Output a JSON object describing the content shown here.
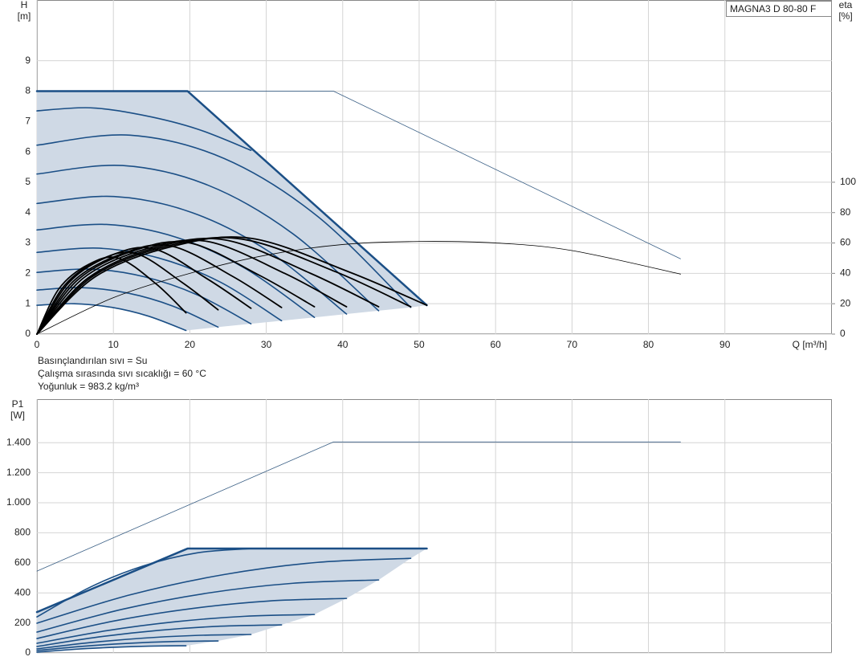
{
  "chart_data": [
    {
      "type": "line",
      "annotation": "MAGNA3 D 80-80 F",
      "ylabel": "H",
      "yunit": "[m]",
      "y2label": "eta",
      "y2unit": "[%]",
      "xlabel": "Q [m³/h]",
      "notes": [
        "Basınçlandırılan sıvı = Su",
        "Çalışma sırasında sıvı sıcaklığı = 60 °C",
        "Yoğunluk = 983.2 kg/m³"
      ],
      "xlim": [
        0,
        104
      ],
      "ylim": [
        0,
        11
      ],
      "y2lim": [
        0,
        220
      ],
      "xticks": [
        0,
        10,
        20,
        30,
        40,
        50,
        60,
        70,
        80,
        90
      ],
      "yticks": [
        0,
        1,
        2,
        3,
        4,
        5,
        6,
        7,
        8,
        9
      ],
      "y2ticks": [
        0,
        20,
        40,
        60,
        80,
        100
      ],
      "grid": true,
      "series": [
        {
          "type": "area",
          "color": "#cfd9e5",
          "x": [
            0,
            19.7,
            51,
            48.9,
            44.7,
            40.5,
            36.3,
            32,
            28,
            23.7,
            19.5,
            14.6,
            9.8,
            4.9,
            0
          ],
          "values": [
            8,
            8,
            0.95,
            0.88,
            0.77,
            0.66,
            0.55,
            0.44,
            0.34,
            0.23,
            0.12,
            0.59,
            0.88,
            1,
            0.95
          ]
        },
        {
          "type": "line",
          "color": "#3a5f85",
          "width": 0.8,
          "smooth": false,
          "x": [
            0,
            38.8,
            84.2
          ],
          "values": [
            8,
            8,
            2.48
          ]
        },
        {
          "type": "line",
          "color": "#1b4f86",
          "width": 2.5,
          "smooth": false,
          "x": [
            0,
            19.7,
            51
          ],
          "values": [
            8,
            8,
            0.95
          ]
        },
        {
          "type": "line",
          "color": "#1b4f86",
          "width": 1.6,
          "smooth": true,
          "x": [
            0,
            7,
            14,
            21,
            28
          ],
          "values": [
            7.35,
            7.45,
            7.2,
            6.75,
            6.05
          ]
        },
        {
          "type": "line",
          "color": "#1b4f86",
          "width": 1.6,
          "smooth": true,
          "x": [
            0,
            12.2,
            24.5,
            36.7,
            48.9
          ],
          "values": [
            6.22,
            6.55,
            5.78,
            3.88,
            0.88
          ]
        },
        {
          "type": "line",
          "color": "#1b4f86",
          "width": 1.6,
          "smooth": true,
          "x": [
            0,
            11.2,
            22.4,
            33.5,
            44.7
          ],
          "values": [
            5.27,
            5.55,
            4.9,
            3.3,
            0.77
          ]
        },
        {
          "type": "line",
          "color": "#1b4f86",
          "width": 1.6,
          "smooth": true,
          "x": [
            0,
            10.1,
            20.3,
            30.4,
            40.5
          ],
          "values": [
            4.3,
            4.53,
            4,
            2.71,
            0.66
          ]
        },
        {
          "type": "line",
          "color": "#1b4f86",
          "width": 1.6,
          "smooth": true,
          "x": [
            0,
            9.1,
            18.2,
            27.2,
            36.3
          ],
          "values": [
            3.43,
            3.61,
            3.19,
            2.17,
            0.55
          ]
        },
        {
          "type": "line",
          "color": "#1b4f86",
          "width": 1.6,
          "smooth": true,
          "x": [
            0,
            8,
            16,
            24,
            32
          ],
          "values": [
            2.69,
            2.83,
            2.5,
            1.71,
            0.44
          ]
        },
        {
          "type": "line",
          "color": "#1b4f86",
          "width": 1.6,
          "smooth": true,
          "x": [
            0,
            7,
            14,
            21,
            28
          ],
          "values": [
            2.03,
            2.14,
            1.89,
            1.29,
            0.34
          ]
        },
        {
          "type": "line",
          "color": "#1b4f86",
          "width": 1.6,
          "smooth": true,
          "x": [
            0,
            5.9,
            11.9,
            17.8,
            23.7
          ],
          "values": [
            1.45,
            1.53,
            1.35,
            0.92,
            0.23
          ]
        },
        {
          "type": "line",
          "color": "#1b4f86",
          "width": 1.6,
          "smooth": true,
          "x": [
            0,
            4.9,
            9.8,
            14.6,
            19.5
          ],
          "values": [
            0.95,
            1,
            0.88,
            0.59,
            0.12
          ]
        },
        {
          "type": "line",
          "axis": "y2",
          "color": "#000000",
          "width": 0.8,
          "smooth": true,
          "x": [
            0,
            10,
            20,
            30,
            40,
            50,
            60,
            70,
            84.2
          ],
          "values": [
            0,
            24,
            40,
            52,
            59,
            61,
            60,
            55,
            39.5
          ]
        },
        {
          "type": "line",
          "axis": "y2",
          "color": "#000000",
          "width": 1.8,
          "smooth": true,
          "x": [
            0,
            2.9,
            6.8,
            10.7,
            15.6,
            19.5
          ],
          "values": [
            0,
            30,
            46,
            50,
            33,
            14
          ]
        },
        {
          "type": "line",
          "axis": "y2",
          "color": "#000000",
          "width": 1.8,
          "smooth": true,
          "x": [
            0,
            3.6,
            8.3,
            13,
            19,
            23.7
          ],
          "values": [
            0,
            32,
            49,
            53,
            34,
            16
          ]
        },
        {
          "type": "line",
          "axis": "y2",
          "color": "#000000",
          "width": 1.8,
          "smooth": true,
          "x": [
            0,
            4.2,
            9.8,
            15.4,
            22.4,
            28
          ],
          "values": [
            0,
            34,
            52,
            56,
            36,
            17
          ]
        },
        {
          "type": "line",
          "axis": "y2",
          "color": "#000000",
          "width": 1.8,
          "smooth": true,
          "x": [
            0,
            4.8,
            11.2,
            17.6,
            25.6,
            32
          ],
          "values": [
            0,
            35,
            53,
            58,
            38,
            17.5
          ]
        },
        {
          "type": "line",
          "axis": "y2",
          "color": "#000000",
          "width": 1.8,
          "smooth": true,
          "x": [
            0,
            5.4,
            12.7,
            20,
            29,
            36.3
          ],
          "values": [
            0,
            36,
            55,
            60,
            39,
            18
          ]
        },
        {
          "type": "line",
          "axis": "y2",
          "color": "#000000",
          "width": 1.8,
          "smooth": true,
          "x": [
            0,
            6.1,
            14.2,
            22.3,
            32.4,
            40.5
          ],
          "values": [
            0,
            37,
            56,
            61,
            40,
            18
          ]
        },
        {
          "type": "line",
          "axis": "y2",
          "color": "#000000",
          "width": 1.8,
          "smooth": true,
          "x": [
            0,
            6.7,
            15.6,
            24.6,
            35.8,
            44.7
          ],
          "values": [
            0,
            37,
            57,
            62,
            40,
            18
          ]
        },
        {
          "type": "line",
          "axis": "y2",
          "color": "#000000",
          "width": 1.8,
          "smooth": true,
          "x": [
            0,
            7.3,
            17.1,
            26.9,
            39.1,
            48.9
          ],
          "values": [
            0,
            38,
            58,
            62.5,
            41,
            18
          ]
        },
        {
          "type": "line",
          "axis": "y2",
          "color": "#000000",
          "width": 1.8,
          "smooth": true,
          "x": [
            0,
            7.7,
            17.9,
            28.1,
            40.8,
            51
          ],
          "values": [
            0,
            38,
            58,
            63,
            41,
            19
          ]
        }
      ]
    },
    {
      "type": "line",
      "ylabel": "P1",
      "yunit": "[W]",
      "xlim": [
        0,
        104
      ],
      "ylim": [
        0,
        1690
      ],
      "xticks": [
        0,
        10,
        20,
        30,
        40,
        50,
        60,
        70,
        80,
        90
      ],
      "xtick_labels": false,
      "yticks": [
        0,
        200,
        400,
        600,
        800,
        {
          "value": 1000,
          "label": "1.000"
        },
        {
          "value": 1200,
          "label": "1.200"
        },
        {
          "value": 1400,
          "label": "1.400"
        }
      ],
      "grid": true,
      "series": [
        {
          "type": "area",
          "color": "#cfd9e5",
          "x": [
            0,
            19.7,
            51,
            48.9,
            44.7,
            40.5,
            36.3,
            32,
            28,
            23.7,
            19.5,
            14.6,
            9.8,
            4.9,
            0
          ],
          "values": [
            272,
            695,
            695,
            630,
            486,
            363,
            256,
            187,
            123,
            80,
            48,
            45,
            37,
            24,
            5
          ]
        },
        {
          "type": "line",
          "color": "#3a5f85",
          "width": 0.8,
          "smooth": false,
          "x": [
            0,
            38.8,
            84.2
          ],
          "values": [
            545,
            1405,
            1405
          ]
        },
        {
          "type": "line",
          "color": "#1b4f86",
          "width": 2.5,
          "smooth": false,
          "x": [
            0,
            19.7,
            51
          ],
          "values": [
            272,
            695,
            695
          ]
        },
        {
          "type": "line",
          "color": "#1b4f86",
          "width": 1.6,
          "smooth": true,
          "x": [
            0,
            7,
            14,
            21,
            28
          ],
          "values": [
            240,
            439,
            581,
            667,
            695
          ]
        },
        {
          "type": "line",
          "color": "#1b4f86",
          "width": 1.6,
          "smooth": true,
          "x": [
            0,
            12.2,
            24.5,
            36.7,
            48.9
          ],
          "values": [
            198,
            387,
            522,
            603,
            630
          ]
        },
        {
          "type": "line",
          "color": "#1b4f86",
          "width": 1.6,
          "smooth": true,
          "x": [
            0,
            11.2,
            22.4,
            33.5,
            44.7
          ],
          "values": [
            139,
            291,
            399,
            464,
            486
          ]
        },
        {
          "type": "line",
          "color": "#1b4f86",
          "width": 1.6,
          "smooth": true,
          "x": [
            0,
            10.1,
            20.3,
            30.4,
            40.5
          ],
          "values": [
            96,
            213,
            296,
            346,
            363
          ]
        },
        {
          "type": "line",
          "color": "#1b4f86",
          "width": 1.6,
          "smooth": true,
          "x": [
            0,
            9.1,
            18.2,
            27.2,
            36.3
          ],
          "values": [
            64,
            148,
            208,
            244,
            256
          ]
        },
        {
          "type": "line",
          "color": "#1b4f86",
          "width": 1.6,
          "smooth": true,
          "x": [
            0,
            8,
            16,
            24,
            32
          ],
          "values": [
            43,
            106,
            151,
            178,
            187
          ]
        },
        {
          "type": "line",
          "color": "#1b4f86",
          "width": 1.6,
          "smooth": true,
          "x": [
            0,
            7,
            14,
            21,
            28
          ],
          "values": [
            27,
            69,
            99,
            117,
            123
          ]
        },
        {
          "type": "line",
          "color": "#1b4f86",
          "width": 1.6,
          "smooth": true,
          "x": [
            0,
            5.9,
            11.9,
            17.8,
            23.7
          ],
          "values": [
            16,
            44,
            64,
            76,
            80
          ]
        },
        {
          "type": "line",
          "color": "#1b4f86",
          "width": 1.6,
          "smooth": true,
          "x": [
            0,
            4.9,
            9.8,
            14.6,
            19.5
          ],
          "values": [
            5,
            24,
            37,
            45,
            48
          ]
        }
      ]
    }
  ]
}
